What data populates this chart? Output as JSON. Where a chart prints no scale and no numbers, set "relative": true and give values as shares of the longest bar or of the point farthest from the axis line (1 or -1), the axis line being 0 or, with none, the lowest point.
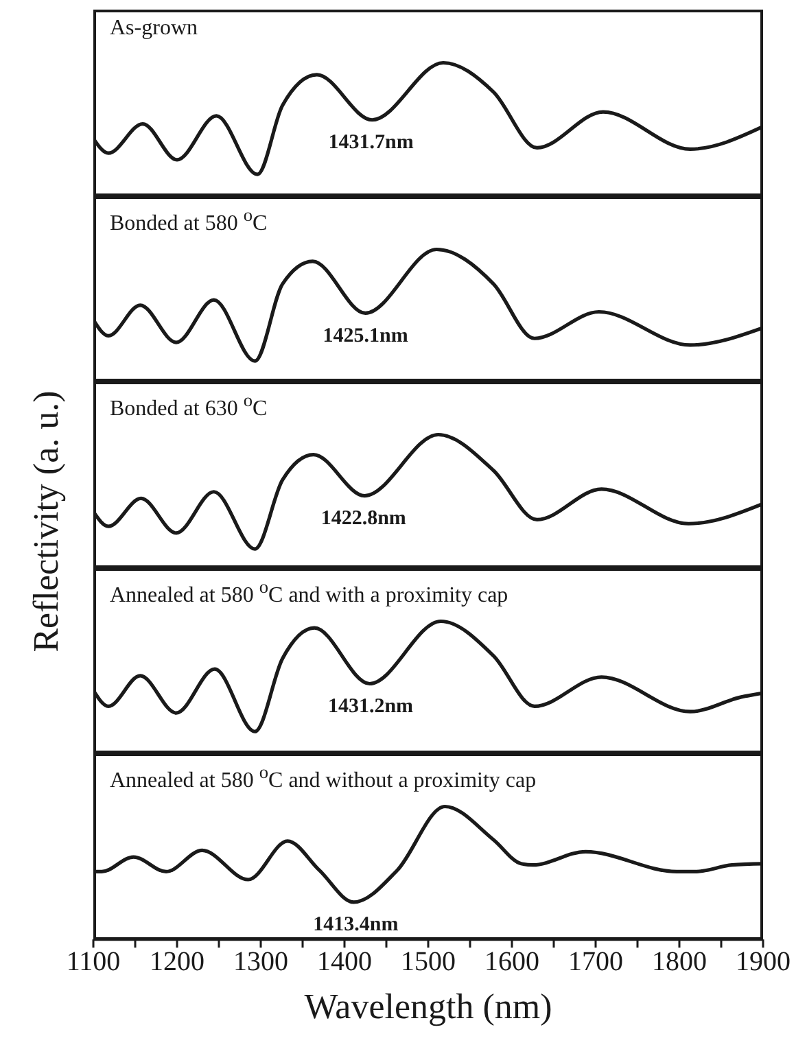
{
  "chart_data": [
    {
      "type": "line",
      "title": "As-grown",
      "relative": true,
      "color": "#1a1a1a",
      "xlim": [
        1100,
        1900
      ],
      "tick_labels": false,
      "x": [
        1100,
        1118,
        1159,
        1200,
        1247,
        1296,
        1326,
        1367,
        1433,
        1518,
        1578,
        1630,
        1709,
        1813,
        1900
      ],
      "values": [
        0.43,
        0.32,
        0.54,
        0.27,
        0.6,
        0.16,
        0.68,
        0.91,
        0.57,
        1,
        0.78,
        0.36,
        0.63,
        0.35,
        0.52
      ],
      "annotations": [
        {
          "text": "1431.7nm",
          "x": 1431.7,
          "y": 0.57
        }
      ]
    },
    {
      "type": "line",
      "title": "Bonded at 580 $^{o}$C",
      "relative": true,
      "color": "#1a1a1a",
      "xlim": [
        1100,
        1900
      ],
      "tick_labels": false,
      "x": [
        1100,
        1118,
        1156,
        1199,
        1244,
        1293,
        1326,
        1362,
        1425,
        1510,
        1578,
        1627,
        1704,
        1813,
        1900
      ],
      "values": [
        0.47,
        0.35,
        0.58,
        0.3,
        0.62,
        0.16,
        0.74,
        0.91,
        0.52,
        1,
        0.74,
        0.33,
        0.53,
        0.28,
        0.41
      ],
      "annotations": [
        {
          "text": "1425.1nm",
          "x": 1425.1,
          "y": 0.52
        }
      ]
    },
    {
      "type": "line",
      "title": "Bonded at 630 $^{o}$C",
      "relative": true,
      "color": "#1a1a1a",
      "xlim": [
        1100,
        1900
      ],
      "tick_labels": false,
      "ylabel": "Reflectivity (a. u.)",
      "x": [
        1100,
        1118,
        1157,
        1199,
        1244,
        1293,
        1326,
        1363,
        1424,
        1512,
        1578,
        1630,
        1707,
        1811,
        1900
      ],
      "values": [
        0.42,
        0.31,
        0.52,
        0.26,
        0.57,
        0.14,
        0.66,
        0.85,
        0.54,
        1,
        0.73,
        0.36,
        0.59,
        0.33,
        0.48
      ],
      "annotations": [
        {
          "text": "1422.8nm",
          "x": 1422.8,
          "y": 0.54
        }
      ]
    },
    {
      "type": "line",
      "title": "Annealed at 580 $^{o}$C and with a proximity cap",
      "relative": true,
      "color": "#1a1a1a",
      "xlim": [
        1100,
        1900
      ],
      "tick_labels": false,
      "x": [
        1100,
        1118,
        1156,
        1199,
        1245,
        1293,
        1326,
        1364,
        1430,
        1515,
        1578,
        1627,
        1707,
        1813,
        1874,
        1900
      ],
      "values": [
        0.48,
        0.36,
        0.59,
        0.31,
        0.64,
        0.17,
        0.72,
        0.95,
        0.53,
        1,
        0.74,
        0.36,
        0.58,
        0.32,
        0.43,
        0.46
      ],
      "annotations": [
        {
          "text": "1431.2nm",
          "x": 1431.2,
          "y": 0.53
        }
      ]
    },
    {
      "type": "line",
      "title": "Annealed at 580 $^{o}$C and without a proximity cap",
      "relative": true,
      "color": "#1a1a1a",
      "xlim": [
        1100,
        1900
      ],
      "tick_labels": "x",
      "xlabel": "Wavelength (nm)",
      "xticks": [
        1100,
        {
          "value": 1150,
          "label": null
        },
        1200,
        {
          "value": 1250,
          "label": null
        },
        1300,
        {
          "value": 1350,
          "label": null
        },
        1400,
        {
          "value": 1450,
          "label": null
        },
        1500,
        {
          "value": 1550,
          "label": null
        },
        1600,
        {
          "value": 1650,
          "label": null
        },
        1700,
        {
          "value": 1750,
          "label": null
        },
        1800,
        {
          "value": 1850,
          "label": null
        },
        1900
      ],
      "x": [
        1100,
        1110,
        1148,
        1187,
        1230,
        1285,
        1332,
        1370,
        1411,
        1463,
        1520,
        1578,
        1611,
        1625,
        1688,
        1797,
        1819,
        1863,
        1900
      ],
      "values": [
        0.51,
        0.51,
        0.62,
        0.51,
        0.67,
        0.45,
        0.74,
        0.52,
        0.28,
        0.52,
        1,
        0.75,
        0.57,
        0.56,
        0.66,
        0.51,
        0.51,
        0.56,
        0.57
      ],
      "annotations": [
        {
          "text": "1413.4nm",
          "x": 1413.4,
          "y": 0.28
        }
      ]
    }
  ]
}
